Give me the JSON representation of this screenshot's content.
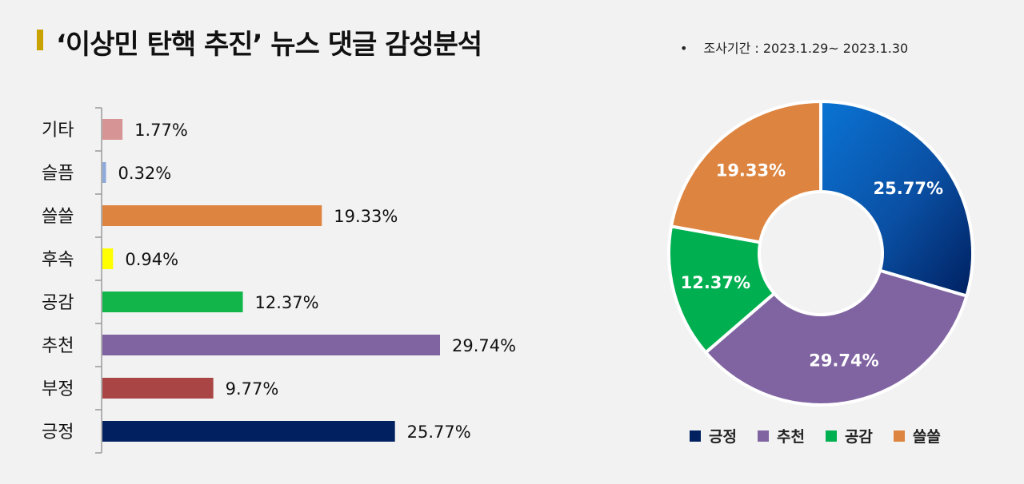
{
  "header": {
    "title": "‘이상민 탄핵 추진’ 뉴스 댓글 감성분석",
    "period_bullet": "•",
    "period": "조사기간 : 2023.1.29~ 2023.1.30"
  },
  "chart_data": [
    {
      "type": "bar",
      "orientation": "horizontal",
      "categories": [
        "기타",
        "슬픔",
        "쓸쓸",
        "후속",
        "공감",
        "추천",
        "부정",
        "긍정"
      ],
      "values": [
        1.77,
        0.32,
        19.33,
        0.94,
        12.37,
        29.74,
        9.77,
        25.77
      ],
      "value_labels": [
        "1.77%",
        "0.32%",
        "19.33%",
        "0.94%",
        "12.37%",
        "29.74%",
        "9.77%",
        "25.77%"
      ],
      "colors": [
        "#d69594",
        "#8eaadb",
        "#dd8540",
        "#ffff00",
        "#11b54a",
        "#8064a2",
        "#a94645",
        "#002060"
      ],
      "xlim": [
        0,
        30
      ]
    },
    {
      "type": "pie",
      "donut": true,
      "labels": [
        "긍정",
        "추천",
        "공감",
        "쓸쓸"
      ],
      "values": [
        25.77,
        29.74,
        12.37,
        19.33
      ],
      "value_labels": [
        "25.77%",
        "29.74%",
        "12.37%",
        "19.33%"
      ],
      "colors": [
        "#002060",
        "#8064a2",
        "#00b050",
        "#dd8540"
      ],
      "legend": "bottom"
    }
  ],
  "legend": {
    "items": [
      {
        "label": "긍정",
        "color": "#002060"
      },
      {
        "label": "추천",
        "color": "#8064a2"
      },
      {
        "label": "공감",
        "color": "#00b050"
      },
      {
        "label": "쓸쓸",
        "color": "#dd8540"
      }
    ]
  }
}
